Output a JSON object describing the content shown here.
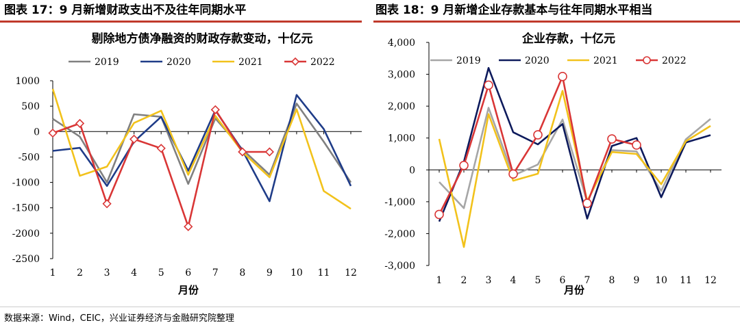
{
  "header": {
    "left_title": "图表 17：9 月新增财政支出不及往年同期水平",
    "right_title": "图表 18：9 月新增企业存款基本与往年同期水平相当"
  },
  "footer": {
    "source": "数据来源：Wind，CEIC，兴业证券经济与金融研究院整理"
  },
  "chart_data": [
    {
      "type": "line",
      "title": "剔除地方债净融资的财政存款变动，十亿元",
      "xlabel": "月份",
      "ylabel": "",
      "x": [
        1,
        2,
        3,
        4,
        5,
        6,
        7,
        8,
        9,
        10,
        11,
        12
      ],
      "ylim": [
        -2500,
        1000
      ],
      "yticks": [
        1000,
        500,
        0,
        -500,
        -1000,
        -1500,
        -2000,
        -2500
      ],
      "ytick_labels": [
        "1000",
        "500",
        "0",
        "-500",
        "-1000",
        "-1500",
        "-2000",
        "-2500"
      ],
      "grid": false,
      "legend_position": "top",
      "series": [
        {
          "name": "2019",
          "color": "#808080",
          "marker": false,
          "values": [
            250,
            -100,
            -1000,
            340,
            290,
            -1030,
            260,
            -350,
            -850,
            550,
            -200,
            -1000
          ]
        },
        {
          "name": "2020",
          "color": "#1f3c88",
          "marker": false,
          "values": [
            -380,
            -320,
            -1070,
            -200,
            290,
            -770,
            420,
            -370,
            -1370,
            720,
            50,
            -1070
          ]
        },
        {
          "name": "2021",
          "color": "#f2c21b",
          "marker": false,
          "values": [
            840,
            -870,
            -690,
            170,
            410,
            -850,
            310,
            -400,
            -900,
            440,
            -1170,
            -1520
          ]
        },
        {
          "name": "2022",
          "color": "#d93636",
          "marker": true,
          "values": [
            -30,
            160,
            -1420,
            -150,
            -330,
            -1870,
            430,
            -400,
            -400,
            null,
            null,
            null
          ]
        }
      ]
    },
    {
      "type": "line",
      "title": "企业存款，十亿元",
      "xlabel": "月份",
      "ylabel": "",
      "x": [
        1,
        2,
        3,
        4,
        5,
        6,
        7,
        8,
        9,
        10,
        11,
        12
      ],
      "ylim": [
        -3000,
        4000
      ],
      "yticks": [
        4000,
        3000,
        2000,
        1000,
        0,
        -1000,
        -2000,
        -3000
      ],
      "ytick_labels": [
        "4,000",
        "3,000",
        "2,000",
        "1,000",
        "0",
        "-1,000",
        "-2,000",
        "-3,000"
      ],
      "grid": false,
      "legend_position": "top",
      "series": [
        {
          "name": "2019",
          "color": "#a6a6a6",
          "marker": false,
          "values": [
            -380,
            -1200,
            1950,
            -180,
            170,
            1580,
            -1000,
            620,
            580,
            -660,
            960,
            1600
          ]
        },
        {
          "name": "2020",
          "color": "#0d1a5c",
          "marker": false,
          "values": [
            -1620,
            250,
            3200,
            1180,
            800,
            1440,
            -1530,
            750,
            1000,
            -860,
            860,
            1090
          ]
        },
        {
          "name": "2021",
          "color": "#f2c21b",
          "marker": false,
          "values": [
            970,
            -2420,
            1750,
            -340,
            -120,
            2480,
            -980,
            560,
            500,
            -450,
            900,
            1380
          ]
        },
        {
          "name": "2022",
          "color": "#d93636",
          "marker": true,
          "values": [
            -1400,
            140,
            2660,
            -130,
            1100,
            2930,
            -1050,
            970,
            780,
            null,
            null,
            null
          ]
        }
      ]
    }
  ]
}
